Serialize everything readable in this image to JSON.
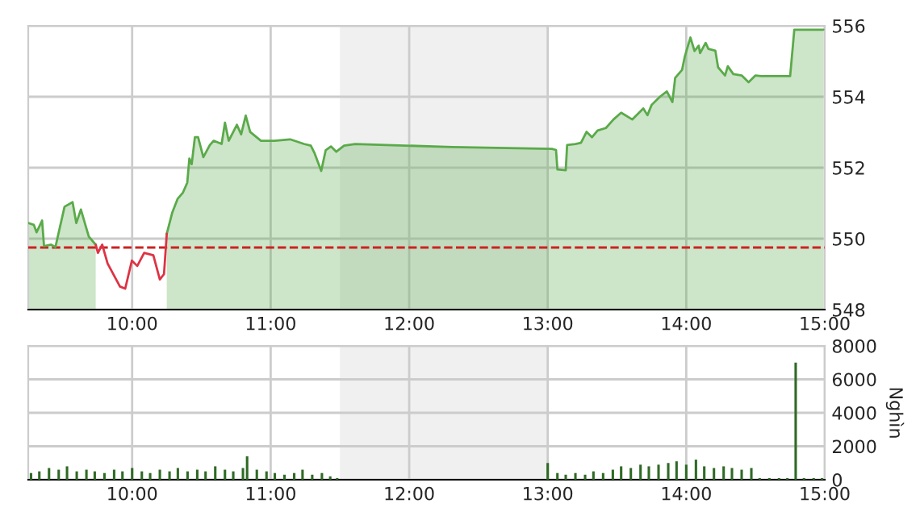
{
  "chart_data": [
    {
      "type": "area",
      "xlim": [
        9.25,
        15
      ],
      "ylim": [
        548,
        556
      ],
      "xticks": [
        {
          "value": 10,
          "label": "10:00"
        },
        {
          "value": 11,
          "label": "11:00"
        },
        {
          "value": 12,
          "label": "12:00"
        },
        {
          "value": 13,
          "label": "13:00"
        },
        {
          "value": 14,
          "label": "14:00"
        },
        {
          "value": 15,
          "label": "15:00"
        }
      ],
      "yticks": [
        548,
        550,
        552,
        554,
        556
      ],
      "grid": true,
      "legend": false,
      "ref_lines": [
        {
          "axis": "y",
          "value": 549.75,
          "color": "#cc2222",
          "line_style": "dashed"
        }
      ],
      "bands": [
        {
          "axis": "x",
          "from": 11.5,
          "to": 13,
          "color": "#f0f0f0"
        }
      ],
      "series": [
        {
          "type": "area",
          "color": "#5aaa4a",
          "x": [
            9.25,
            9.29,
            9.31,
            9.35,
            9.364,
            9.415,
            9.446,
            9.512,
            9.57,
            9.597,
            9.63,
            9.687,
            9.737,
            10.0,
            10.25,
            10.29,
            10.328,
            10.367,
            10.398,
            10.413,
            10.43,
            10.453,
            10.476,
            10.514,
            10.561,
            10.588,
            10.646,
            10.67,
            10.697,
            10.756,
            10.787,
            10.82,
            10.852,
            10.93,
            11.027,
            11.14,
            11.24,
            11.29,
            11.318,
            11.365,
            11.397,
            11.435,
            11.474,
            11.53,
            11.61,
            12.31,
            13.03,
            13.06,
            13.07,
            13.13,
            13.14,
            13.2,
            13.24,
            13.28,
            13.32,
            13.36,
            13.42,
            13.475,
            13.53,
            13.61,
            13.69,
            13.72,
            13.75,
            13.81,
            13.86,
            13.9,
            13.92,
            13.97,
            13.99,
            14.03,
            14.06,
            14.09,
            14.1,
            14.14,
            14.16,
            14.21,
            14.23,
            14.28,
            14.3,
            14.34,
            14.4,
            14.45,
            14.5,
            14.54,
            14.75,
            14.78,
            14.99
          ],
          "values": [
            550.44,
            550.39,
            550.18,
            550.51,
            549.79,
            549.83,
            549.76,
            550.9,
            551.03,
            550.44,
            550.82,
            550.06,
            549.83,
            null,
            550.14,
            550.74,
            551.12,
            551.3,
            551.58,
            552.26,
            552.1,
            552.86,
            552.86,
            552.3,
            552.64,
            552.76,
            552.67,
            553.27,
            552.76,
            553.21,
            552.94,
            553.47,
            553.01,
            552.76,
            552.76,
            552.8,
            552.67,
            552.62,
            552.4,
            551.91,
            552.49,
            552.6,
            552.45,
            552.62,
            552.67,
            552.58,
            552.53,
            552.5,
            551.95,
            551.93,
            552.64,
            552.67,
            552.7,
            553.01,
            552.86,
            553.05,
            553.12,
            553.36,
            553.55,
            553.36,
            553.67,
            553.48,
            553.77,
            554.0,
            554.15,
            553.85,
            554.53,
            554.76,
            555.14,
            555.67,
            555.29,
            555.44,
            555.23,
            555.52,
            555.35,
            555.3,
            554.83,
            554.6,
            554.86,
            554.64,
            554.6,
            554.41,
            554.6,
            554.58,
            554.58,
            555.89,
            555.89
          ]
        },
        {
          "type": "line",
          "color": "#dd3344",
          "x": [
            9.737,
            9.753,
            9.784,
            9.823,
            9.912,
            9.95,
            9.998,
            10.037,
            10.087,
            10.153,
            10.2,
            10.23,
            10.25
          ],
          "values": [
            549.83,
            549.6,
            549.83,
            549.3,
            548.65,
            548.59,
            549.38,
            549.23,
            549.6,
            549.53,
            548.85,
            549.0,
            550.14
          ]
        }
      ]
    },
    {
      "type": "bar",
      "ylabel": "Nghìn",
      "xlim": [
        9.25,
        15
      ],
      "ylim": [
        0,
        8000
      ],
      "xticks": [
        {
          "value": 10,
          "label": "10:00"
        },
        {
          "value": 11,
          "label": "11:00"
        },
        {
          "value": 12,
          "label": "12:00"
        },
        {
          "value": 13,
          "label": "13:00"
        },
        {
          "value": 14,
          "label": "14:00"
        },
        {
          "value": 15,
          "label": "15:00"
        }
      ],
      "yticks": [
        0,
        2000,
        4000,
        6000,
        8000
      ],
      "grid": true,
      "legend": false,
      "bands": [
        {
          "axis": "x",
          "from": 11.5,
          "to": 13,
          "color": "#f0f0f0"
        }
      ],
      "series": [
        {
          "color": "#2f6a25",
          "x": [
            9.27,
            9.33,
            9.4,
            9.47,
            9.53,
            9.6,
            9.67,
            9.73,
            9.8,
            9.87,
            9.93,
            10.0,
            10.07,
            10.13,
            10.2,
            10.27,
            10.33,
            10.4,
            10.47,
            10.53,
            10.6,
            10.67,
            10.73,
            10.8,
            10.83,
            10.9,
            10.97,
            11.03,
            11.1,
            11.17,
            11.23,
            11.3,
            11.37,
            11.43,
            11.48,
            13.0,
            13.07,
            13.13,
            13.2,
            13.27,
            13.33,
            13.4,
            13.47,
            13.53,
            13.6,
            13.67,
            13.73,
            13.8,
            13.87,
            13.93,
            14.0,
            14.07,
            14.13,
            14.2,
            14.27,
            14.33,
            14.4,
            14.47,
            14.53,
            14.6,
            14.67,
            14.73,
            14.79,
            14.85,
            14.92,
            14.98
          ],
          "values": [
            400,
            500,
            700,
            600,
            800,
            500,
            600,
            500,
            400,
            600,
            500,
            700,
            500,
            400,
            600,
            500,
            700,
            500,
            600,
            500,
            800,
            600,
            500,
            700,
            1400,
            600,
            500,
            400,
            300,
            400,
            600,
            300,
            400,
            200,
            100,
            1000,
            400,
            300,
            400,
            300,
            500,
            400,
            600,
            800,
            700,
            900,
            800,
            900,
            1000,
            1100,
            900,
            1200,
            800,
            700,
            800,
            700,
            600,
            700,
            100,
            100,
            100,
            100,
            7000,
            100,
            100,
            100
          ]
        }
      ]
    }
  ]
}
